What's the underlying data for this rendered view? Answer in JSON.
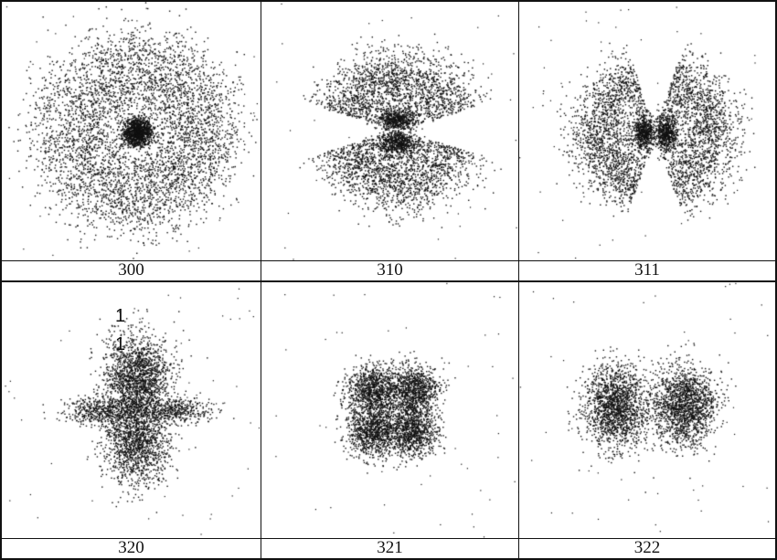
{
  "panels": [
    {
      "id": "p300",
      "label": "300",
      "shape": "ring"
    },
    {
      "id": "p310",
      "label": "310",
      "shape": "v-pz"
    },
    {
      "id": "p311",
      "label": "311",
      "shape": "h-pz"
    },
    {
      "id": "p320",
      "label": "320",
      "shape": "dz2"
    },
    {
      "id": "p321",
      "label": "321",
      "shape": "clover"
    },
    {
      "id": "p322",
      "label": "322",
      "shape": "h-two"
    }
  ],
  "annotation": {
    "line1": "1",
    "line2": "1"
  }
}
